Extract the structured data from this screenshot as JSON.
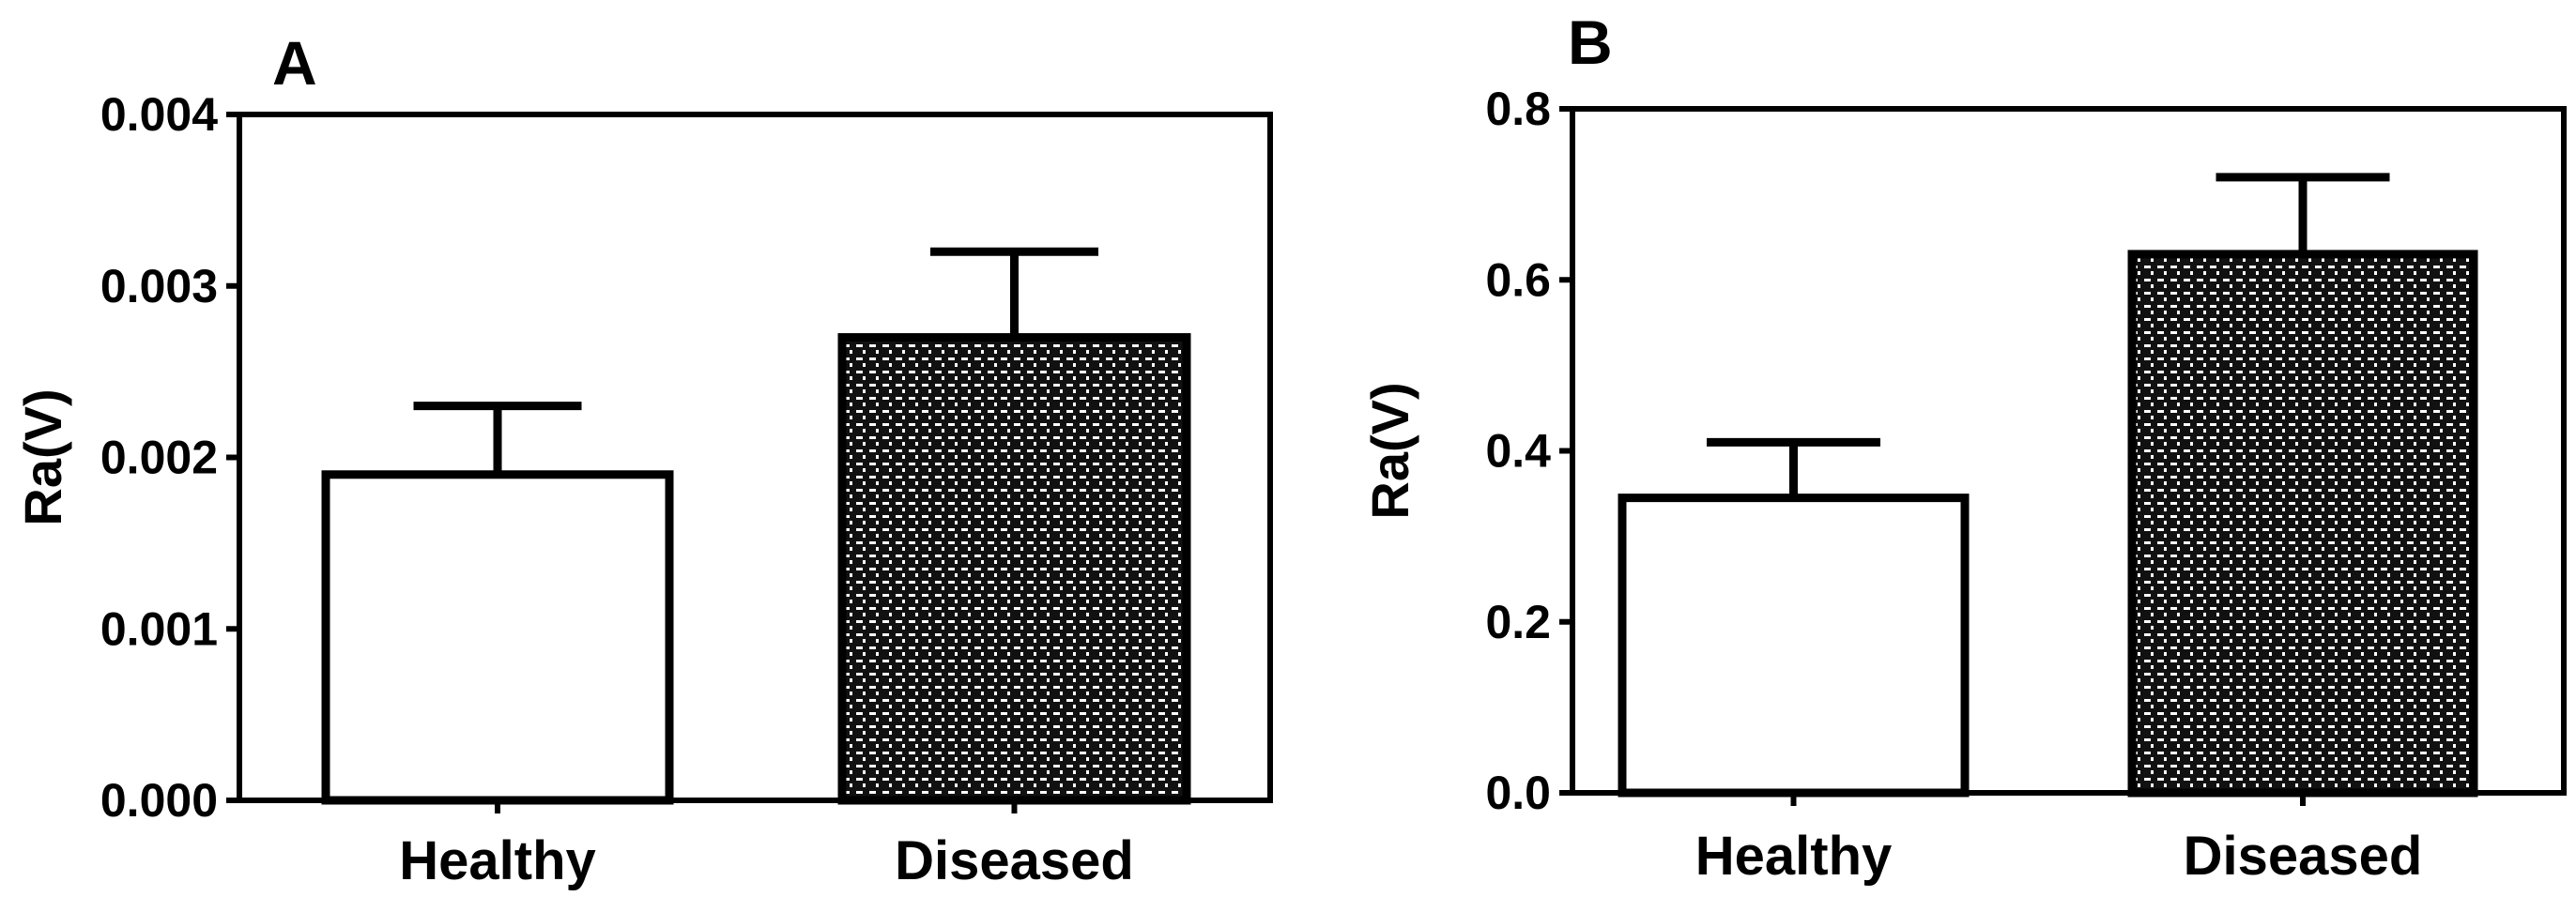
{
  "chart_data": [
    {
      "type": "bar",
      "panel_label": "A",
      "ylabel": "Ra(V)",
      "xlabel": "",
      "ylim": [
        0,
        0.004
      ],
      "yticks": [
        "0.000",
        "0.001",
        "0.002",
        "0.003",
        "0.004"
      ],
      "categories": [
        "Healthy",
        "Diseased"
      ],
      "values": [
        0.0019,
        0.0027
      ],
      "error_upper": [
        0.0004,
        0.0005
      ],
      "fills": [
        "white",
        "crosshatch"
      ],
      "grid": false
    },
    {
      "type": "bar",
      "panel_label": "B",
      "ylabel": "Ra(V)",
      "xlabel": "",
      "ylim": [
        0,
        0.8
      ],
      "yticks": [
        "0.0",
        "0.2",
        "0.4",
        "0.6",
        "0.8"
      ],
      "categories": [
        "Healthy",
        "Diseased"
      ],
      "values": [
        0.345,
        0.63
      ],
      "error_upper": [
        0.065,
        0.09
      ],
      "fills": [
        "white",
        "crosshatch"
      ],
      "grid": false
    }
  ],
  "colors": {
    "axis": "#000000",
    "bar_stroke": "#000000",
    "hatch_dark": "#111111",
    "hatch_light": "#ffffff",
    "background": "#ffffff"
  }
}
